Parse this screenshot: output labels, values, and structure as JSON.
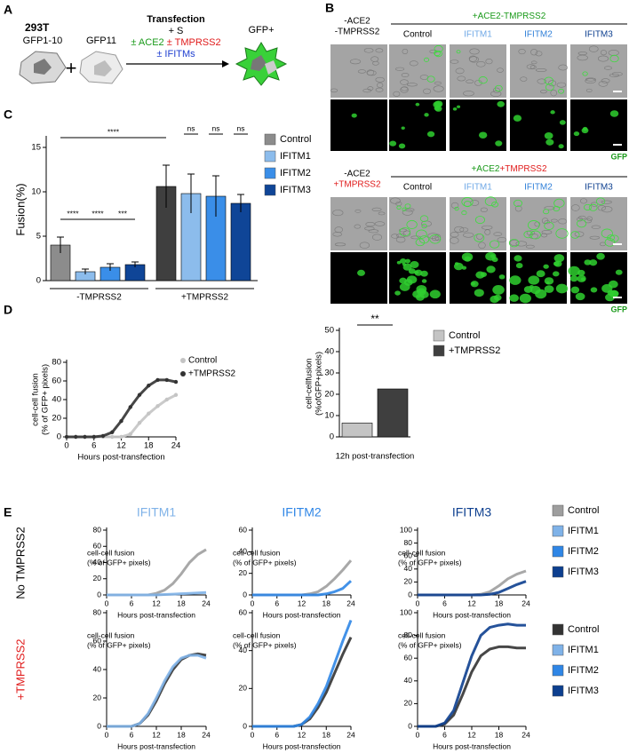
{
  "panel_labels": [
    "A",
    "B",
    "C",
    "D",
    "E"
  ],
  "diagram": {
    "cell_line": "293T",
    "donor": "GFP1-10",
    "plus": "+",
    "acceptor": "GFP11",
    "step": "Transfection",
    "spike": "+ S",
    "ace2": "± ACE2",
    "tmprss2": "± TMPRSS2",
    "ifitms": "± IFITMs",
    "result": "GFP+"
  },
  "micrographs": [
    {
      "condition": [
        "-ACE2",
        "-TMPRSS2"
      ],
      "group": [
        "+ACE2-TMPRSS2"
      ],
      "columns": [
        "Control",
        "IFITM1",
        "IFITM2",
        "IFITM3"
      ],
      "channel": "GFP"
    },
    {
      "condition": [
        "-ACE2",
        "+TMPRSS2"
      ],
      "group": [
        "+ACE2",
        "+TMPRSS2"
      ],
      "columns": [
        "Control",
        "IFITM1",
        "IFITM2",
        "IFITM3"
      ],
      "channel": "GFP"
    }
  ],
  "row_labels": [
    "No TMPRSS2",
    "+TMPRSS2"
  ],
  "chart_data": [
    {
      "type": "bar",
      "ylabel": "Fusion(%)",
      "categories": [
        "-TMPRSS2",
        "+TMPRSS2"
      ],
      "series": [
        {
          "name": "Control",
          "color": "#8c8c8c",
          "colors": [
            "#8c8c8c",
            "#3f3f3f"
          ],
          "values": [
            4.0,
            10.6
          ],
          "errors": [
            0.9,
            2.4
          ]
        },
        {
          "name": "IFITM1",
          "color": "#8cbcec",
          "values": [
            1.0,
            9.8
          ],
          "errors": [
            0.3,
            2.2
          ]
        },
        {
          "name": "IFITM2",
          "color": "#3a8ee8",
          "values": [
            1.5,
            9.5
          ],
          "errors": [
            0.4,
            2.3
          ]
        },
        {
          "name": "IFITM3",
          "color": "#0f4597",
          "values": [
            1.8,
            8.7
          ],
          "errors": [
            0.3,
            1.0
          ]
        }
      ],
      "annotations": [
        "****",
        "ns",
        "ns",
        "ns",
        "****",
        "****",
        "***"
      ],
      "ylim": [
        0,
        16
      ],
      "yticks": [
        0,
        5,
        10,
        15
      ]
    },
    {
      "type": "line",
      "xlabel": "Hours post-transfection",
      "ylabel": [
        "cell-cell fusion",
        "(% of GFP+ pixels)"
      ],
      "x": [
        0,
        2,
        4,
        6,
        8,
        10,
        12,
        14,
        16,
        18,
        20,
        22,
        24
      ],
      "series": [
        {
          "name": "Control",
          "color": "#c4c4c4",
          "values": [
            0,
            0,
            0,
            0,
            0,
            0,
            0,
            3,
            15,
            25,
            33,
            40,
            45
          ]
        },
        {
          "name": "+TMPRSS2",
          "color": "#333333",
          "values": [
            0,
            0,
            0,
            0,
            1,
            5,
            17,
            32,
            45,
            55,
            61,
            61,
            59
          ]
        }
      ],
      "xlim": [
        0,
        24
      ],
      "xticks": [
        0,
        6,
        12,
        18,
        24
      ],
      "ylim": [
        0,
        80
      ],
      "yticks": [
        0,
        20,
        40,
        60,
        80
      ]
    },
    {
      "type": "bar",
      "ylabel": [
        "cell-cellfusion",
        "(%ofGFP+pixels)"
      ],
      "categories": [
        "12h post-transfection"
      ],
      "series": [
        {
          "name": "Control",
          "color": "#c4c4c4",
          "values": [
            6.5
          ]
        },
        {
          "name": "+TMPRSS2",
          "color": "#3f3f3f",
          "values": [
            22.5
          ]
        }
      ],
      "annotations": [
        "**"
      ],
      "ylim": [
        0,
        50
      ],
      "yticks": [
        0,
        10,
        20,
        30,
        40,
        50
      ]
    },
    {
      "type": "line",
      "title": "IFITM1",
      "xlabel": "Hours post-transfection",
      "ylabel": [
        "cell-cell fusion",
        "(% of GFP+ pixels)"
      ],
      "x": [
        0,
        2,
        4,
        6,
        8,
        10,
        12,
        14,
        16,
        18,
        20,
        22,
        24
      ],
      "series": [
        {
          "name": "Control",
          "color": "#9e9e9e",
          "values": [
            0,
            0,
            0,
            0,
            0,
            0,
            2,
            6,
            14,
            26,
            40,
            50,
            56
          ]
        },
        {
          "name": "IFITM1",
          "color": "#7fb2e8",
          "values": [
            0,
            0,
            0,
            0,
            0,
            0,
            0,
            0.5,
            1,
            1.5,
            2,
            2.5,
            3
          ]
        }
      ],
      "xlim": [
        0,
        24
      ],
      "xticks": [
        0,
        6,
        12,
        18,
        24
      ],
      "ylim": [
        0,
        80
      ],
      "yticks": [
        0,
        20,
        40,
        60,
        80
      ]
    },
    {
      "type": "line",
      "title": "IFITM2",
      "xlabel": "Hours post-transfection",
      "ylabel": [
        "cell-cell fusion",
        "(% of GFP+ pixels)"
      ],
      "x": [
        0,
        2,
        4,
        6,
        8,
        10,
        12,
        14,
        16,
        18,
        20,
        22,
        24
      ],
      "series": [
        {
          "name": "Control",
          "color": "#9e9e9e",
          "values": [
            0,
            0,
            0,
            0,
            0,
            0,
            0,
            1,
            3,
            8,
            15,
            23,
            32
          ]
        },
        {
          "name": "IFITM2",
          "color": "#2f86e6",
          "values": [
            0,
            0,
            0,
            0,
            0,
            0,
            0,
            0,
            0,
            1,
            3,
            6,
            13
          ]
        }
      ],
      "xlim": [
        0,
        24
      ],
      "xticks": [
        0,
        6,
        12,
        18,
        24
      ],
      "ylim": [
        0,
        60
      ],
      "yticks": [
        0,
        20,
        40,
        60
      ]
    },
    {
      "type": "line",
      "title": "IFITM3",
      "xlabel": "Hours post-transfection",
      "ylabel": [
        "cell-cell fusion",
        "(% of GFP+ pixels)"
      ],
      "x": [
        0,
        2,
        4,
        6,
        8,
        10,
        12,
        14,
        16,
        18,
        20,
        22,
        24
      ],
      "series": [
        {
          "name": "Control",
          "color": "#9e9e9e",
          "values": [
            0,
            0,
            0,
            0,
            0,
            0,
            0,
            1,
            5,
            14,
            25,
            32,
            37
          ]
        },
        {
          "name": "IFITM3",
          "color": "#0d3f8f",
          "values": [
            0,
            0,
            0,
            0,
            0,
            0,
            0,
            0,
            1,
            4,
            10,
            16,
            21
          ]
        }
      ],
      "legend": [
        {
          "name": "Control",
          "color": "#9e9e9e"
        },
        {
          "name": "IFITM1",
          "color": "#7fb2e8"
        },
        {
          "name": "IFITM2",
          "color": "#2f86e6"
        },
        {
          "name": "IFITM3",
          "color": "#0d3f8f"
        }
      ],
      "xlim": [
        0,
        24
      ],
      "xticks": [
        0,
        6,
        12,
        18,
        24
      ],
      "ylim": [
        0,
        100
      ],
      "yticks": [
        0,
        20,
        40,
        60,
        80,
        100
      ]
    },
    {
      "type": "line",
      "xlabel": "Hours post-transfection",
      "ylabel": [
        "cell-cell fusion",
        "(% of GFP+ pixels)"
      ],
      "x": [
        0,
        2,
        4,
        6,
        8,
        10,
        12,
        14,
        16,
        18,
        20,
        22,
        24
      ],
      "series": [
        {
          "name": "Control",
          "color": "#333333",
          "values": [
            0,
            0,
            0,
            0,
            2,
            8,
            18,
            30,
            40,
            47,
            50,
            51,
            50
          ]
        },
        {
          "name": "IFITM1",
          "color": "#7fb2e8",
          "values": [
            0,
            0,
            0,
            0,
            2,
            9,
            20,
            32,
            42,
            48,
            50,
            50,
            48
          ]
        }
      ],
      "xlim": [
        0,
        24
      ],
      "xticks": [
        0,
        6,
        12,
        18,
        24
      ],
      "ylim": [
        0,
        80
      ],
      "yticks": [
        0,
        20,
        40,
        60,
        80
      ]
    },
    {
      "type": "line",
      "xlabel": "Hours post-transfection",
      "ylabel": [
        "cell-cell fusion",
        "(% of GFP+ pixels)"
      ],
      "x": [
        0,
        2,
        4,
        6,
        8,
        10,
        12,
        14,
        16,
        18,
        20,
        22,
        24
      ],
      "series": [
        {
          "name": "Control",
          "color": "#333333",
          "values": [
            0,
            0,
            0,
            0,
            0,
            0,
            1,
            4,
            10,
            18,
            28,
            38,
            47
          ]
        },
        {
          "name": "IFITM2",
          "color": "#2f86e6",
          "values": [
            0,
            0,
            0,
            0,
            0,
            0,
            1,
            5,
            12,
            21,
            33,
            45,
            56
          ]
        }
      ],
      "xlim": [
        0,
        24
      ],
      "xticks": [
        0,
        6,
        12,
        18,
        24
      ],
      "ylim": [
        0,
        60
      ],
      "yticks": [
        0,
        20,
        40,
        60
      ]
    },
    {
      "type": "line",
      "xlabel": "Hours post-transfection",
      "ylabel": [
        "cell-cell fusion",
        "(% of GFP+ pixels)"
      ],
      "x": [
        0,
        2,
        4,
        6,
        8,
        10,
        12,
        14,
        16,
        18,
        20,
        22,
        24
      ],
      "series": [
        {
          "name": "Control",
          "color": "#333333",
          "values": [
            0,
            0,
            0,
            2,
            10,
            28,
            48,
            62,
            68,
            70,
            70,
            69,
            69
          ]
        },
        {
          "name": "IFITM3",
          "color": "#0d3f8f",
          "values": [
            0,
            0,
            0,
            3,
            14,
            38,
            62,
            80,
            87,
            89,
            90,
            89,
            89
          ]
        }
      ],
      "legend": [
        {
          "name": "Control",
          "color": "#333333"
        },
        {
          "name": "IFITM1",
          "color": "#7fb2e8"
        },
        {
          "name": "IFITM2",
          "color": "#2f86e6"
        },
        {
          "name": "IFITM3",
          "color": "#0d3f8f"
        }
      ],
      "xlim": [
        0,
        24
      ],
      "xticks": [
        0,
        6,
        12,
        18,
        24
      ],
      "ylim": [
        0,
        100
      ],
      "yticks": [
        0,
        20,
        40,
        60,
        80,
        100
      ]
    }
  ]
}
